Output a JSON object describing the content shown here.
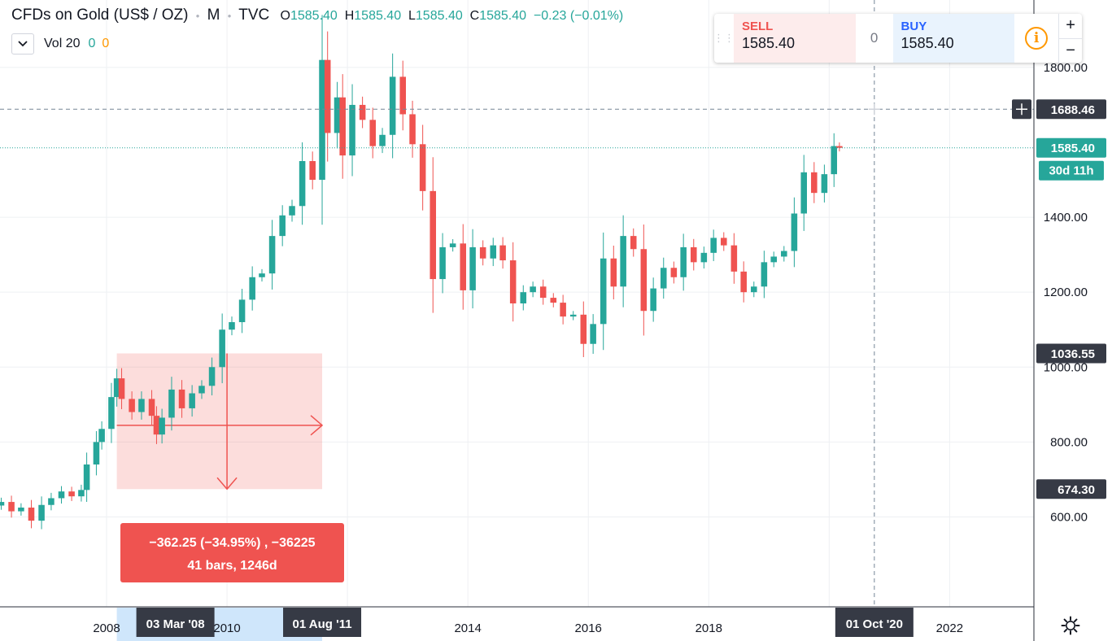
{
  "header": {
    "symbol": "CFDs on Gold (US$ / OZ)",
    "interval": "M",
    "exchange": "TVC",
    "open_label": "O",
    "open": "1585.40",
    "high_label": "H",
    "high": "1585.40",
    "low_label": "L",
    "low": "1585.40",
    "close_label": "C",
    "close": "1585.40",
    "change": "−0.23 (−0.01%)"
  },
  "volume": {
    "label": "Vol 20",
    "value_a": "0",
    "value_b": "0"
  },
  "trade_panel": {
    "sell_label": "SELL",
    "sell_price": "1585.40",
    "quantity": "0",
    "buy_label": "BUY",
    "buy_price": "1585.40",
    "zoom_in": "+",
    "zoom_out": "−"
  },
  "measure": {
    "line1": "−362.25 (−34.95%) , −36225",
    "line2": "41 bars, 1246d",
    "start_date": "03 Mar '08",
    "end_date": "01 Aug '11",
    "start_price": 1036.55,
    "end_price": 674.3
  },
  "crosshair": {
    "date_label": "01 Oct '20",
    "price": 1688.46,
    "price_label": "1688.46"
  },
  "price_badges": {
    "last": "1585.40",
    "countdown": "30d 11h",
    "measure_top": "1036.55",
    "measure_bottom": "674.30",
    "crosshair": "1688.46"
  },
  "colors": {
    "up": "#26a69a",
    "down": "#ef5350",
    "grid": "#eef0f3",
    "text": "#131722"
  },
  "chart_data": {
    "type": "candlestick",
    "title": "CFDs on Gold (US$ / OZ)",
    "interval": "monthly",
    "y_ticks": [
      "600.00",
      "800.00",
      "1000.00",
      "1200.00",
      "1400.00",
      "1800.00"
    ],
    "x_ticks": [
      "2008",
      "2010",
      "2014",
      "2016",
      "2018",
      "2022"
    ],
    "ylim": [
      360,
      1980
    ],
    "xlim": [
      2006.23,
      2023.4
    ],
    "last_price": 1585.4,
    "series": [
      {
        "t": 2006.25,
        "c": 640
      },
      {
        "t": 2006.42,
        "c": 615
      },
      {
        "t": 2006.58,
        "c": 625
      },
      {
        "t": 2006.75,
        "c": 590
      },
      {
        "t": 2006.92,
        "c": 632
      },
      {
        "t": 2007.08,
        "c": 650
      },
      {
        "t": 2007.25,
        "c": 668
      },
      {
        "t": 2007.42,
        "c": 655
      },
      {
        "t": 2007.58,
        "c": 672
      },
      {
        "t": 2007.67,
        "c": 740
      },
      {
        "t": 2007.83,
        "c": 800
      },
      {
        "t": 2007.92,
        "c": 835
      },
      {
        "t": 2008.08,
        "c": 920
      },
      {
        "t": 2008.17,
        "c": 970
      },
      {
        "t": 2008.25,
        "c": 915
      },
      {
        "t": 2008.42,
        "c": 880
      },
      {
        "t": 2008.58,
        "c": 915
      },
      {
        "t": 2008.75,
        "c": 870
      },
      {
        "t": 2008.83,
        "c": 820
      },
      {
        "t": 2008.92,
        "c": 865
      },
      {
        "t": 2009.08,
        "c": 940
      },
      {
        "t": 2009.25,
        "c": 890
      },
      {
        "t": 2009.42,
        "c": 930
      },
      {
        "t": 2009.58,
        "c": 950
      },
      {
        "t": 2009.75,
        "c": 1000
      },
      {
        "t": 2009.92,
        "c": 1100
      },
      {
        "t": 2010.08,
        "c": 1120
      },
      {
        "t": 2010.25,
        "c": 1180
      },
      {
        "t": 2010.42,
        "c": 1240
      },
      {
        "t": 2010.58,
        "c": 1250
      },
      {
        "t": 2010.75,
        "c": 1350
      },
      {
        "t": 2010.92,
        "c": 1405
      },
      {
        "t": 2011.08,
        "c": 1430
      },
      {
        "t": 2011.25,
        "c": 1550
      },
      {
        "t": 2011.42,
        "c": 1500
      },
      {
        "t": 2011.58,
        "c": 1820
      },
      {
        "t": 2011.67,
        "c": 1625
      },
      {
        "t": 2011.83,
        "c": 1720
      },
      {
        "t": 2011.92,
        "c": 1565
      },
      {
        "t": 2012.08,
        "c": 1700
      },
      {
        "t": 2012.25,
        "c": 1660
      },
      {
        "t": 2012.42,
        "c": 1590
      },
      {
        "t": 2012.58,
        "c": 1620
      },
      {
        "t": 2012.75,
        "c": 1775
      },
      {
        "t": 2012.92,
        "c": 1675
      },
      {
        "t": 2013.08,
        "c": 1595
      },
      {
        "t": 2013.25,
        "c": 1470
      },
      {
        "t": 2013.42,
        "c": 1235
      },
      {
        "t": 2013.58,
        "c": 1320
      },
      {
        "t": 2013.75,
        "c": 1330
      },
      {
        "t": 2013.92,
        "c": 1205
      },
      {
        "t": 2014.08,
        "c": 1320
      },
      {
        "t": 2014.25,
        "c": 1290
      },
      {
        "t": 2014.42,
        "c": 1325
      },
      {
        "t": 2014.58,
        "c": 1285
      },
      {
        "t": 2014.75,
        "c": 1170
      },
      {
        "t": 2014.92,
        "c": 1200
      },
      {
        "t": 2015.08,
        "c": 1215
      },
      {
        "t": 2015.25,
        "c": 1185
      },
      {
        "t": 2015.42,
        "c": 1172
      },
      {
        "t": 2015.58,
        "c": 1135
      },
      {
        "t": 2015.75,
        "c": 1140
      },
      {
        "t": 2015.92,
        "c": 1062
      },
      {
        "t": 2016.08,
        "c": 1115
      },
      {
        "t": 2016.25,
        "c": 1290
      },
      {
        "t": 2016.42,
        "c": 1215
      },
      {
        "t": 2016.58,
        "c": 1350
      },
      {
        "t": 2016.75,
        "c": 1315
      },
      {
        "t": 2016.92,
        "c": 1150
      },
      {
        "t": 2017.08,
        "c": 1210
      },
      {
        "t": 2017.25,
        "c": 1265
      },
      {
        "t": 2017.42,
        "c": 1240
      },
      {
        "t": 2017.58,
        "c": 1320
      },
      {
        "t": 2017.75,
        "c": 1280
      },
      {
        "t": 2017.92,
        "c": 1305
      },
      {
        "t": 2018.08,
        "c": 1345
      },
      {
        "t": 2018.25,
        "c": 1325
      },
      {
        "t": 2018.42,
        "c": 1255
      },
      {
        "t": 2018.58,
        "c": 1200
      },
      {
        "t": 2018.75,
        "c": 1215
      },
      {
        "t": 2018.92,
        "c": 1280
      },
      {
        "t": 2019.08,
        "c": 1295
      },
      {
        "t": 2019.25,
        "c": 1310
      },
      {
        "t": 2019.42,
        "c": 1410
      },
      {
        "t": 2019.58,
        "c": 1520
      },
      {
        "t": 2019.75,
        "c": 1465
      },
      {
        "t": 2019.92,
        "c": 1515
      },
      {
        "t": 2020.08,
        "c": 1590
      },
      {
        "t": 2020.17,
        "c": 1585.4
      }
    ]
  }
}
